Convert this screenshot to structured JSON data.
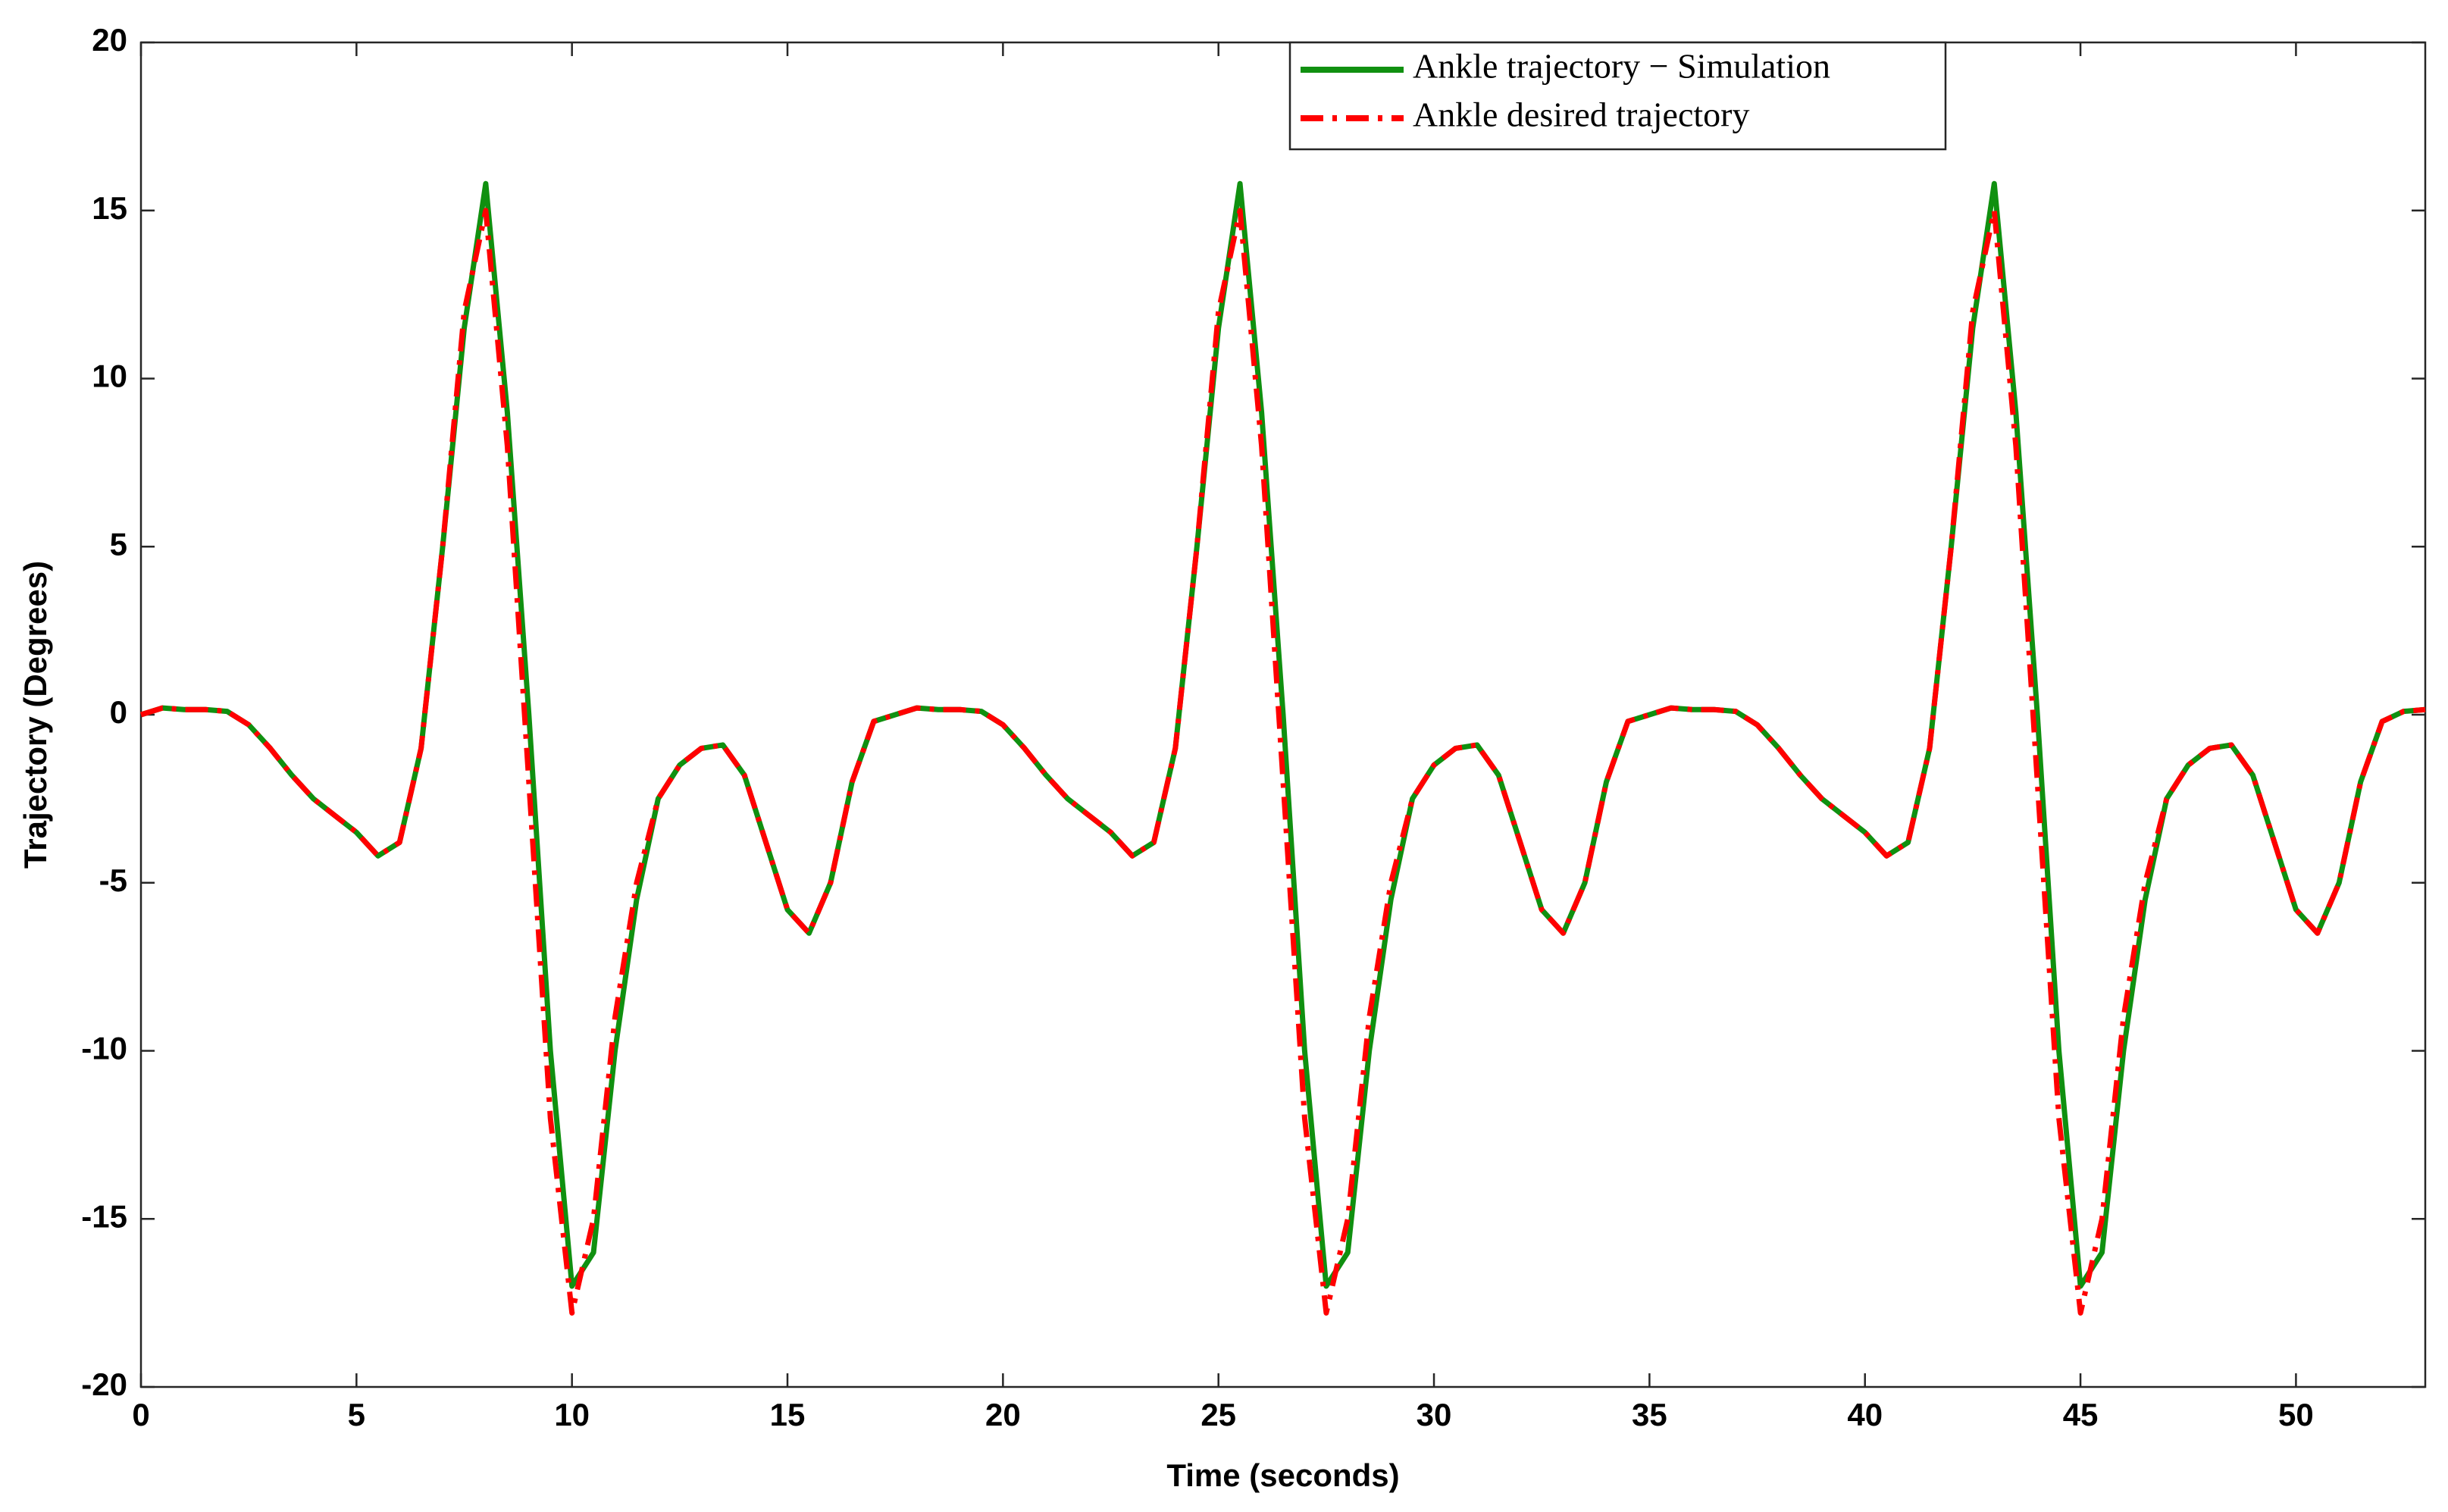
{
  "chart_data": {
    "type": "line",
    "xlabel": "Time (seconds)",
    "ylabel": "Trajectory (Degrees)",
    "x": [
      0,
      0.5,
      1,
      1.5,
      2,
      2.5,
      3,
      3.5,
      4,
      4.5,
      5,
      5.5,
      6,
      6.5,
      7,
      7.5,
      8,
      8.5,
      9,
      9.5,
      10,
      10.5,
      11,
      11.5,
      12,
      12.5,
      13,
      13.5,
      14,
      14.5,
      15,
      15.5,
      16,
      16.5,
      17,
      17.5,
      18,
      18.5,
      19,
      19.5,
      20,
      20.5,
      21,
      21.5,
      22,
      22.5,
      23,
      23.5,
      24,
      24.5,
      25,
      25.5,
      26,
      26.5,
      27,
      27.5,
      28,
      28.5,
      29,
      29.5,
      30,
      30.5,
      31,
      31.5,
      32,
      32.5,
      33,
      33.5,
      34,
      34.5,
      35,
      35.5,
      36,
      36.5,
      37,
      37.5,
      38,
      38.5,
      39,
      39.5,
      40,
      40.5,
      41,
      41.5,
      42,
      42.5,
      43,
      43.5,
      44,
      44.5,
      45,
      45.5,
      46,
      46.5,
      47,
      47.5,
      48,
      48.5,
      49,
      49.5,
      50,
      50.5,
      51,
      51.5,
      52,
      52.5,
      53
    ],
    "series": [
      {
        "name": "Ankle trajectory − Simulation",
        "color": "#109010",
        "style": "solid",
        "values": [
          0,
          0.2,
          0.15,
          0.15,
          0.1,
          -0.3,
          -1,
          -1.8,
          -2.5,
          -3,
          -3.5,
          -4.2,
          -3.8,
          -1,
          5,
          11.5,
          15.8,
          9,
          0,
          -10,
          -17,
          -16,
          -10,
          -5.5,
          -2.5,
          -1.5,
          -1,
          -0.9,
          -1.8,
          -3.8,
          -5.8,
          -6.5,
          -5,
          -2,
          -0.2,
          0,
          0.2,
          0.15,
          0.15,
          0.1,
          -0.3,
          -1,
          -1.8,
          -2.5,
          -3,
          -3.5,
          -4.2,
          -3.8,
          -1,
          5,
          11.5,
          15.8,
          9,
          0,
          -10,
          -17,
          -16,
          -10,
          -5.5,
          -2.5,
          -1.5,
          -1,
          -0.9,
          -1.8,
          -3.8,
          -5.8,
          -6.5,
          -5,
          -2,
          -0.2,
          0,
          0.2,
          0.15,
          0.15,
          0.1,
          -0.3,
          -1,
          -1.8,
          -2.5,
          -3,
          -3.5,
          -4.2,
          -3.8,
          -1,
          5,
          11.5,
          15.8,
          9,
          0,
          -10,
          -17,
          -16,
          -10,
          -5.5,
          -2.5,
          -1.5,
          -1,
          -0.9,
          -1.8,
          -3.8,
          -5.8,
          -6.5,
          -5,
          -2,
          -0.2,
          0.1,
          0.15
        ]
      },
      {
        "name": "Ankle desired trajectory",
        "color": "#ff0000",
        "style": "dashdot",
        "values": [
          0,
          0.2,
          0.15,
          0.15,
          0.1,
          -0.3,
          -1,
          -1.8,
          -2.5,
          -3,
          -3.5,
          -4.2,
          -3.8,
          -1,
          5,
          12,
          15,
          8,
          -2,
          -12,
          -17.8,
          -15,
          -9,
          -5,
          -2.5,
          -1.5,
          -1,
          -0.9,
          -1.8,
          -3.8,
          -5.8,
          -6.5,
          -5,
          -2,
          -0.2,
          0,
          0.2,
          0.15,
          0.15,
          0.1,
          -0.3,
          -1,
          -1.8,
          -2.5,
          -3,
          -3.5,
          -4.2,
          -3.8,
          -1,
          5,
          12,
          15,
          8,
          -2,
          -12,
          -17.8,
          -15,
          -9,
          -5,
          -2.5,
          -1.5,
          -1,
          -0.9,
          -1.8,
          -3.8,
          -5.8,
          -6.5,
          -5,
          -2,
          -0.2,
          0,
          0.2,
          0.15,
          0.15,
          0.1,
          -0.3,
          -1,
          -1.8,
          -2.5,
          -3,
          -3.5,
          -4.2,
          -3.8,
          -1,
          5,
          12,
          15,
          8,
          -2,
          -12,
          -17.8,
          -15,
          -9,
          -5,
          -2.5,
          -1.5,
          -1,
          -0.9,
          -1.8,
          -3.8,
          -5.8,
          -6.5,
          -5,
          -2,
          -0.2,
          0.1,
          0.15
        ]
      }
    ],
    "xlim": [
      0,
      53
    ],
    "xticks": [
      0,
      5,
      10,
      15,
      20,
      25,
      30,
      35,
      40,
      45,
      50
    ],
    "ylim": [
      -20,
      20
    ],
    "yticks": [
      -20,
      -15,
      -10,
      -5,
      0,
      5,
      10,
      15,
      20
    ],
    "grid": false,
    "legend": "top-right"
  }
}
